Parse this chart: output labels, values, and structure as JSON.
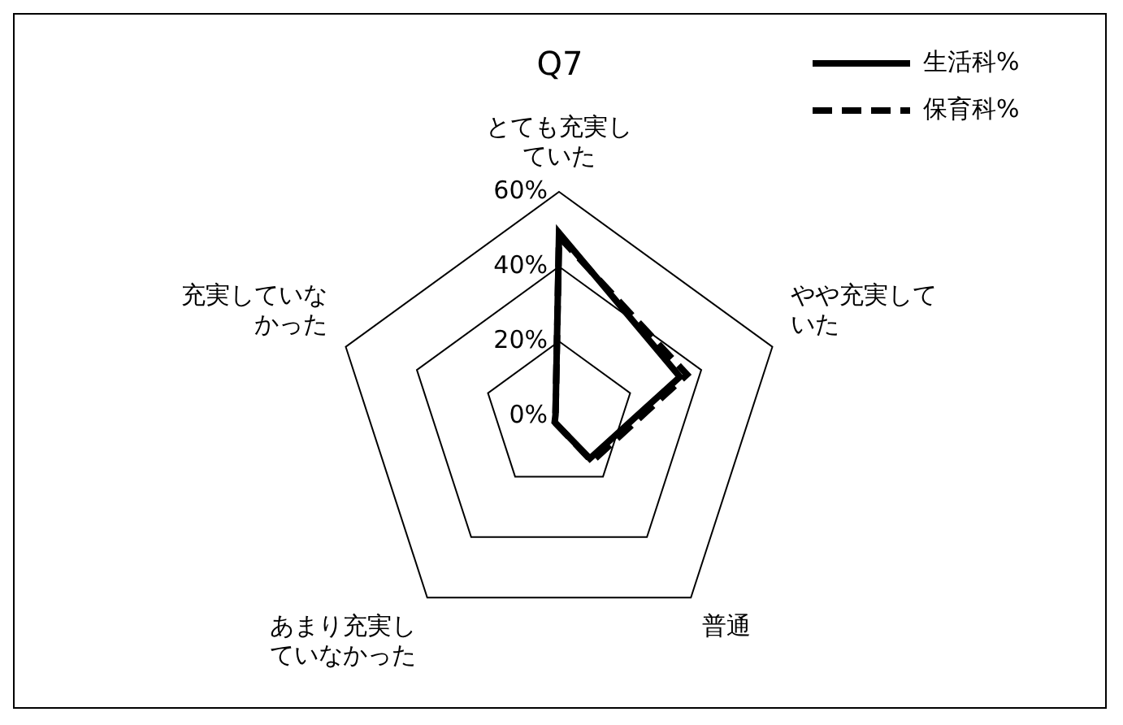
{
  "chart_data": {
    "type": "radar",
    "title": "Q7",
    "categories": [
      "とても充実していた",
      "やや充実していた",
      "普通",
      "あまり充実していなかった",
      "充実していなかった"
    ],
    "series": [
      {
        "name": "生活科%",
        "color": "#000000",
        "line_style": "solid",
        "values": [
          49,
          34,
          14,
          2,
          1
        ]
      },
      {
        "name": "保育科%",
        "color": "#000000",
        "line_style": "dashed",
        "values": [
          48,
          36,
          15,
          2,
          1
        ]
      }
    ],
    "ylim": [
      0,
      60
    ],
    "yticks": [
      {
        "value": 0,
        "label": "0%"
      },
      {
        "value": 20,
        "label": "20%"
      },
      {
        "value": 40,
        "label": "40%"
      },
      {
        "value": 60,
        "label": "60%"
      }
    ],
    "grid": true,
    "legend": "top right",
    "marker": "none"
  }
}
